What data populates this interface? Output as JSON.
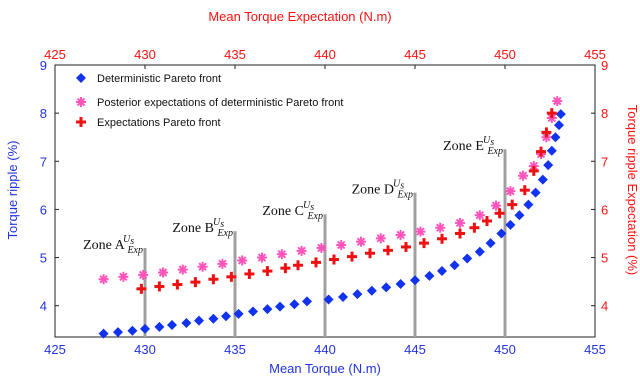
{
  "chart_data": {
    "type": "scatter",
    "xlabel_bottom": "Mean Torque (N.m)",
    "xlabel_top": "Mean Torque Expectation (N.m)",
    "ylabel_left": "Torque ripple (%)",
    "ylabel_right": "Torque ripple Expectation (%)",
    "xlim": [
      425,
      455
    ],
    "ylim_left": [
      3.35,
      9
    ],
    "ylim_right": [
      3.35,
      9
    ],
    "x_ticks": [
      425,
      430,
      435,
      440,
      445,
      450,
      455
    ],
    "y_ticks_left": [
      4,
      5,
      6,
      7,
      8,
      9
    ],
    "y_ticks_right": [
      4,
      5,
      6,
      7,
      8,
      9
    ],
    "grid": false,
    "legend_position": "top-left",
    "colors": {
      "left_axis": "#2233dd",
      "top_axis": "#ff1111",
      "right_axis": "#ff1111",
      "zone_line": "#a0a0a0"
    },
    "series": [
      {
        "name": "Deterministic Pareto front",
        "marker": "diamond",
        "color": "#1133ee",
        "x": [
          427.7,
          428.5,
          429.3,
          430.0,
          430.8,
          431.5,
          432.3,
          433.0,
          433.8,
          434.5,
          435.2,
          436.0,
          436.8,
          437.5,
          438.3,
          439.0,
          440.2,
          441.0,
          441.8,
          442.6,
          443.4,
          444.2,
          445.0,
          445.8,
          446.5,
          447.2,
          447.9,
          448.6,
          449.2,
          449.8,
          450.3,
          450.8,
          451.3,
          451.7,
          452.1,
          452.4,
          452.6,
          452.8,
          453.0,
          453.1
        ],
        "y": [
          3.42,
          3.45,
          3.48,
          3.52,
          3.56,
          3.6,
          3.64,
          3.69,
          3.73,
          3.78,
          3.83,
          3.88,
          3.93,
          3.98,
          4.03,
          4.09,
          4.13,
          4.18,
          4.24,
          4.31,
          4.38,
          4.45,
          4.53,
          4.62,
          4.72,
          4.84,
          4.98,
          5.12,
          5.3,
          5.5,
          5.68,
          5.88,
          6.1,
          6.35,
          6.62,
          6.92,
          7.22,
          7.5,
          7.75,
          7.98
        ]
      },
      {
        "name": "Posterior expectations of deterministic Pareto front",
        "marker": "star",
        "color": "#ff55bb",
        "x": [
          427.7,
          428.8,
          429.9,
          431.0,
          432.1,
          433.2,
          434.3,
          435.4,
          436.5,
          437.6,
          438.7,
          439.8,
          440.9,
          442.0,
          443.1,
          444.2,
          445.3,
          446.4,
          447.5,
          448.6,
          449.5,
          450.3,
          451.0,
          451.6,
          452.0,
          452.3,
          452.6,
          452.9
        ],
        "y": [
          4.55,
          4.6,
          4.64,
          4.69,
          4.75,
          4.81,
          4.87,
          4.94,
          5.0,
          5.07,
          5.14,
          5.2,
          5.26,
          5.33,
          5.4,
          5.47,
          5.54,
          5.62,
          5.72,
          5.88,
          6.08,
          6.38,
          6.7,
          6.9,
          7.15,
          7.5,
          7.9,
          8.25
        ]
      },
      {
        "name": "Expectations Pareto front",
        "marker": "plus",
        "color": "#ee1111",
        "x": [
          429.8,
          430.8,
          431.8,
          432.8,
          433.8,
          434.8,
          435.8,
          436.8,
          437.8,
          438.5,
          439.5,
          440.5,
          441.5,
          442.5,
          443.5,
          444.5,
          445.5,
          446.5,
          447.5,
          448.3,
          449.0,
          449.7,
          450.4,
          451.1,
          451.6,
          452.0,
          452.3,
          452.6
        ],
        "y": [
          4.35,
          4.4,
          4.44,
          4.49,
          4.55,
          4.6,
          4.66,
          4.72,
          4.78,
          4.84,
          4.9,
          4.96,
          5.02,
          5.09,
          5.15,
          5.22,
          5.3,
          5.39,
          5.5,
          5.62,
          5.76,
          5.92,
          6.1,
          6.4,
          6.8,
          7.2,
          7.6,
          8.0
        ]
      }
    ],
    "zones": [
      {
        "label": "Zone A",
        "sup": "U",
        "supsub": "s",
        "sub": "Exp",
        "x": 430,
        "y_top": 5.2
      },
      {
        "label": "Zone B",
        "sup": "U",
        "supsub": "s",
        "sub": "Exp",
        "x": 435,
        "y_top": 5.55
      },
      {
        "label": "Zone C",
        "sup": "U",
        "supsub": "s",
        "sub": "Exp",
        "x": 440,
        "y_top": 5.9
      },
      {
        "label": "Zone D",
        "sup": "U",
        "supsub": "s",
        "sub": "Exp",
        "x": 445,
        "y_top": 6.35
      },
      {
        "label": "Zone E",
        "sup": "U",
        "supsub": "s",
        "sub": "Exp",
        "x": 450,
        "y_top": 7.25
      }
    ]
  }
}
